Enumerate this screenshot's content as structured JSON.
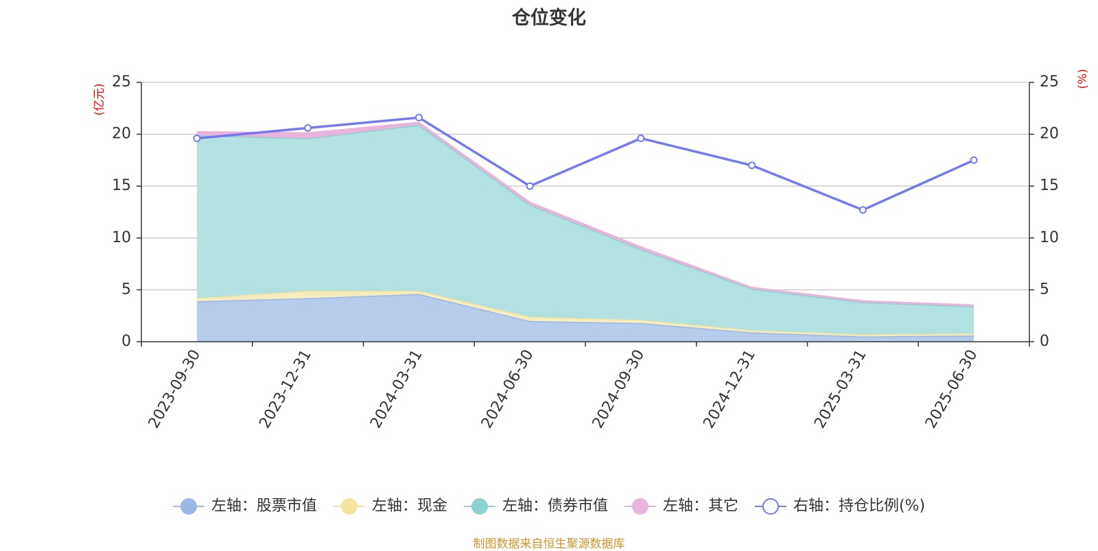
{
  "title": "仓位变化",
  "footer": "制图数据来自恒生聚源数据库",
  "chart_data": {
    "type": "area",
    "title": "仓位变化",
    "categories": [
      "2023-09-30",
      "2023-12-31",
      "2024-03-31",
      "2024-06-30",
      "2024-09-30",
      "2024-12-31",
      "2025-03-31",
      "2025-06-30"
    ],
    "left_axis": {
      "label": "(亿元)",
      "ylim": [
        0,
        25
      ],
      "ticks": [
        0,
        5,
        10,
        15,
        20,
        25
      ]
    },
    "right_axis": {
      "label": "(%)",
      "ylim": [
        0,
        25
      ],
      "ticks": [
        0,
        5,
        10,
        15,
        20,
        25
      ]
    },
    "stacked_series": [
      {
        "name": "左轴：股票市值",
        "color": "#9bb8e4",
        "fill": "#b7cbea",
        "values": [
          3.9,
          4.2,
          4.6,
          2.0,
          1.8,
          0.9,
          0.5,
          0.6
        ]
      },
      {
        "name": "左轴：现金",
        "color": "#f5e3a0",
        "fill": "#f7ecc0",
        "values": [
          0.3,
          0.7,
          0.3,
          0.4,
          0.3,
          0.2,
          0.2,
          0.2
        ]
      },
      {
        "name": "左轴：债券市值",
        "color": "#8fd0d0",
        "fill": "#b3e0e0",
        "values": [
          15.7,
          14.7,
          16.0,
          10.8,
          6.8,
          4.0,
          3.1,
          2.6
        ]
      },
      {
        "name": "左轴：其它",
        "color": "#e8b4dc",
        "fill": "#e8b4dc",
        "values": [
          0.3,
          0.5,
          0.2,
          0.2,
          0.2,
          0.1,
          0.1,
          0.1
        ]
      }
    ],
    "line_series": [
      {
        "name": "右轴：持仓比例(%)",
        "color": "#7479f0",
        "values": [
          19.6,
          20.6,
          21.6,
          15.0,
          19.6,
          17.0,
          12.7,
          17.5
        ]
      }
    ],
    "grid": true,
    "legend_position": "bottom"
  }
}
